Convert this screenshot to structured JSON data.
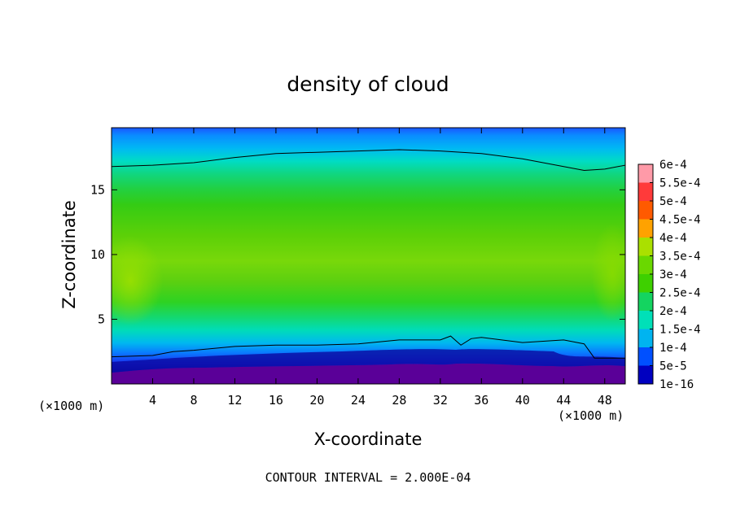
{
  "chart_data": {
    "type": "heatmap",
    "title": "density of cloud",
    "xlabel": "X-coordinate",
    "ylabel": "Z-coordinate",
    "x_unit": "(×1000 m)",
    "z_unit": "(×1000 m)",
    "xlim": [
      0,
      50
    ],
    "ylim": [
      0,
      19.8
    ],
    "x_ticks": [
      4,
      8,
      12,
      16,
      20,
      24,
      28,
      32,
      36,
      40,
      44,
      48
    ],
    "y_ticks": [
      5,
      10,
      15
    ],
    "contour_interval_text": "CONTOUR INTERVAL = 2.000E-04",
    "colorbar": {
      "labels": [
        "6e-4",
        "5.5e-4",
        "5e-4",
        "4.5e-4",
        "4e-4",
        "3.5e-4",
        "3e-4",
        "2.5e-4",
        "2e-4",
        "1.5e-4",
        "1e-4",
        "5e-5",
        "1e-16"
      ],
      "colors": [
        "#ff9aa8",
        "#ff3a3a",
        "#ff5a00",
        "#ffa200",
        "#aae000",
        "#6ad800",
        "#3ed000",
        "#14d460",
        "#00e0b8",
        "#00b4f0",
        "#0050ff",
        "#0000c0",
        "#6a00a8"
      ]
    },
    "contour_levels": [
      0.0002
    ],
    "contour_upper_z": [
      [
        0,
        16.8
      ],
      [
        4,
        16.9
      ],
      [
        8,
        17.1
      ],
      [
        12,
        17.5
      ],
      [
        16,
        17.8
      ],
      [
        20,
        17.9
      ],
      [
        24,
        18.0
      ],
      [
        28,
        18.1
      ],
      [
        32,
        18.0
      ],
      [
        36,
        17.8
      ],
      [
        40,
        17.4
      ],
      [
        44,
        16.8
      ],
      [
        46,
        16.5
      ],
      [
        48,
        16.6
      ],
      [
        50,
        16.9
      ]
    ],
    "contour_lower_z": [
      [
        0,
        2.1
      ],
      [
        4,
        2.2
      ],
      [
        6,
        2.5
      ],
      [
        8,
        2.6
      ],
      [
        12,
        2.9
      ],
      [
        16,
        3.0
      ],
      [
        20,
        3.0
      ],
      [
        24,
        3.1
      ],
      [
        28,
        3.4
      ],
      [
        32,
        3.4
      ],
      [
        33,
        3.7
      ],
      [
        34,
        3.0
      ],
      [
        35,
        3.5
      ],
      [
        36,
        3.6
      ],
      [
        40,
        3.2
      ],
      [
        44,
        3.4
      ],
      [
        46,
        3.1
      ],
      [
        47,
        2.0
      ],
      [
        50,
        2.0
      ]
    ]
  }
}
